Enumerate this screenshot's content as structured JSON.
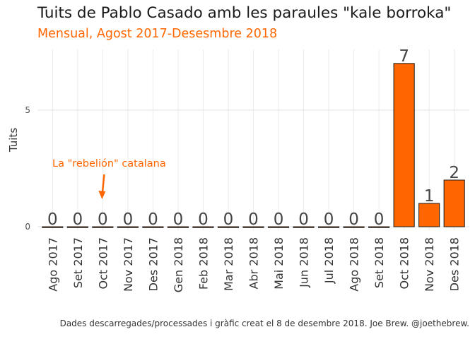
{
  "header": {
    "title": "Tuits de Pablo Casado amb les paraules \"kale borroka\"",
    "subtitle": "Mensual, Agost 2017-Desesmbre 2018"
  },
  "caption": "Dades descarregades/processades i gràfic creat el 8 de desembre 2018. Joe Brew. @joethebrew.",
  "chart_data": {
    "type": "bar",
    "categories": [
      "Ago 2017",
      "Set 2017",
      "Oct 2017",
      "Nov 2017",
      "Des 2017",
      "Gen 2018",
      "Feb 2018",
      "Mar 2018",
      "Abr 2018",
      "Mai 2018",
      "Jun 2018",
      "Jul 2018",
      "Ago 2018",
      "Set 2018",
      "Oct 2018",
      "Nov 2018",
      "Des 2018"
    ],
    "values": [
      0,
      0,
      0,
      0,
      0,
      0,
      0,
      0,
      0,
      0,
      0,
      0,
      0,
      0,
      7,
      1,
      2
    ],
    "title": "Tuits de Pablo Casado amb les paraules \"kale borroka\"",
    "subtitle": "Mensual, Agost 2017-Desesmbre 2018",
    "xlabel": "",
    "ylabel": "Tuits",
    "yticks": [
      0,
      5
    ],
    "ylim": [
      -0.15,
      7.6
    ],
    "grid": true,
    "bar_color": "#ff6600",
    "bar_outline": "#1a1a1a",
    "annotation": {
      "text": "La \"rebelión\" catalana",
      "category": "Oct 2017",
      "color": "#ff6600"
    }
  }
}
